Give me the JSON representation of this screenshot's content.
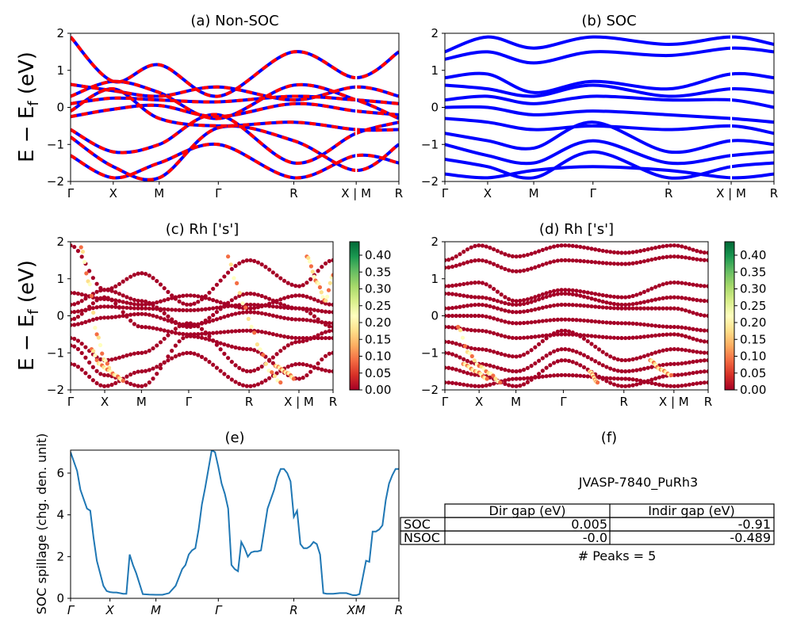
{
  "chart_data": [
    {
      "id": "a",
      "type": "line",
      "title": "(a) Non-SOC",
      "ylabel": "E − E_f (eV)",
      "ylabel_text": "E − E",
      "ylabel_sub": "f",
      "ylabel_unit": " (eV)",
      "ylim": [
        -2,
        2
      ],
      "yticks": [
        "2",
        "1",
        "0",
        "−1",
        "−2"
      ],
      "ytick_values": [
        2,
        1,
        0,
        -1,
        -2
      ],
      "xticks": [
        "Γ",
        "X",
        "M",
        "Γ",
        "R",
        "X | M",
        "R"
      ],
      "xtick_positions": [
        0,
        0.13,
        0.27,
        0.45,
        0.68,
        0.87,
        1.0
      ],
      "series": [
        {
          "color": "#0000ff",
          "style": "solid"
        },
        {
          "color": "#ff0000",
          "style": "dashed"
        }
      ],
      "bands": [
        [
          [
            0,
            0.1
          ],
          [
            0.13,
            0.25
          ],
          [
            0.27,
            0.2
          ],
          [
            0.45,
            0.15
          ],
          [
            0.68,
            0.3
          ],
          [
            0.87,
            0.2
          ],
          [
            1.0,
            0.1
          ]
        ],
        [
          [
            0,
            0.62
          ],
          [
            0.13,
            0.45
          ],
          [
            0.27,
            0.3
          ],
          [
            0.45,
            0.55
          ],
          [
            0.68,
            0.2
          ],
          [
            0.87,
            0.55
          ],
          [
            1.0,
            0.3
          ]
        ],
        [
          [
            0,
            -0.25
          ],
          [
            0.13,
            -0.05
          ],
          [
            0.27,
            0.05
          ],
          [
            0.45,
            -0.25
          ],
          [
            0.68,
            0.1
          ],
          [
            0.87,
            -0.1
          ],
          [
            1.0,
            -0.2
          ]
        ],
        [
          [
            0,
            -0.6
          ],
          [
            0.13,
            -1.2
          ],
          [
            0.27,
            -1.0
          ],
          [
            0.45,
            -0.2
          ],
          [
            0.68,
            -1.5
          ],
          [
            0.87,
            -0.7
          ],
          [
            1.0,
            -0.4
          ]
        ],
        [
          [
            0,
            -0.8
          ],
          [
            0.13,
            -1.6
          ],
          [
            0.27,
            -1.9
          ],
          [
            0.45,
            -0.55
          ],
          [
            0.68,
            -0.9
          ],
          [
            0.87,
            -1.7
          ],
          [
            1.0,
            -1.0
          ]
        ],
        [
          [
            0,
            -1.3
          ],
          [
            0.13,
            -1.9
          ],
          [
            0.27,
            -1.5
          ],
          [
            0.45,
            -1.0
          ],
          [
            0.68,
            -1.9
          ],
          [
            0.87,
            -1.3
          ],
          [
            1.0,
            -1.5
          ]
        ],
        [
          [
            0,
            1.9
          ],
          [
            0.13,
            0.7
          ],
          [
            0.27,
            1.15
          ],
          [
            0.45,
            0.3
          ],
          [
            0.68,
            1.5
          ],
          [
            0.87,
            0.8
          ],
          [
            1.0,
            1.5
          ]
        ],
        [
          [
            0,
            0.3
          ],
          [
            0.13,
            0.7
          ],
          [
            0.27,
            0.4
          ],
          [
            0.45,
            -0.3
          ],
          [
            0.68,
            0.6
          ],
          [
            0.87,
            0.2
          ],
          [
            1.0,
            -0.3
          ]
        ],
        [
          [
            0,
            -0.1
          ],
          [
            0.13,
            0.5
          ],
          [
            0.27,
            -0.3
          ],
          [
            0.45,
            -0.5
          ],
          [
            0.68,
            -0.4
          ],
          [
            0.87,
            -0.6
          ],
          [
            1.0,
            -0.6
          ]
        ]
      ]
    },
    {
      "id": "b",
      "type": "line",
      "title": "(b) SOC",
      "ylim": [
        -2,
        2
      ],
      "yticks": [
        "2",
        "1",
        "0",
        "−1",
        "−2"
      ],
      "ytick_values": [
        2,
        1,
        0,
        -1,
        -2
      ],
      "xticks": [
        "Γ",
        "X",
        "M",
        "Γ",
        "R",
        "X | M",
        "R"
      ],
      "xtick_positions": [
        0,
        0.13,
        0.27,
        0.45,
        0.68,
        0.87,
        1.0
      ],
      "series": [
        {
          "color": "#0000ff",
          "style": "solid"
        }
      ],
      "bands": [
        [
          [
            0,
            1.5
          ],
          [
            0.13,
            1.9
          ],
          [
            0.27,
            1.6
          ],
          [
            0.45,
            1.9
          ],
          [
            0.68,
            1.7
          ],
          [
            0.87,
            1.9
          ],
          [
            1.0,
            1.7
          ]
        ],
        [
          [
            0,
            1.3
          ],
          [
            0.13,
            1.5
          ],
          [
            0.27,
            1.2
          ],
          [
            0.45,
            1.5
          ],
          [
            0.68,
            1.4
          ],
          [
            0.87,
            1.6
          ],
          [
            1.0,
            1.5
          ]
        ],
        [
          [
            0,
            0.8
          ],
          [
            0.13,
            0.9
          ],
          [
            0.27,
            0.4
          ],
          [
            0.45,
            0.7
          ],
          [
            0.68,
            0.5
          ],
          [
            0.87,
            0.9
          ],
          [
            1.0,
            0.8
          ]
        ],
        [
          [
            0,
            0.6
          ],
          [
            0.13,
            0.5
          ],
          [
            0.27,
            0.3
          ],
          [
            0.45,
            0.6
          ],
          [
            0.68,
            0.3
          ],
          [
            0.87,
            0.5
          ],
          [
            1.0,
            0.4
          ]
        ],
        [
          [
            0,
            0.2
          ],
          [
            0.13,
            0.3
          ],
          [
            0.27,
            0.1
          ],
          [
            0.45,
            0.3
          ],
          [
            0.68,
            0.2
          ],
          [
            0.87,
            0.2
          ],
          [
            1.0,
            0.0
          ]
        ],
        [
          [
            0,
            0.0
          ],
          [
            0.13,
            0.0
          ],
          [
            0.27,
            -0.2
          ],
          [
            0.45,
            -0.1
          ],
          [
            0.68,
            -0.2
          ],
          [
            0.87,
            -0.3
          ],
          [
            1.0,
            -0.4
          ]
        ],
        [
          [
            0,
            -0.3
          ],
          [
            0.13,
            -0.4
          ],
          [
            0.27,
            -0.6
          ],
          [
            0.45,
            -0.5
          ],
          [
            0.68,
            -0.6
          ],
          [
            0.87,
            -0.5
          ],
          [
            1.0,
            -0.7
          ]
        ],
        [
          [
            0,
            -0.7
          ],
          [
            0.13,
            -0.9
          ],
          [
            0.27,
            -1.1
          ],
          [
            0.45,
            -0.4
          ],
          [
            0.68,
            -1.2
          ],
          [
            0.87,
            -0.9
          ],
          [
            1.0,
            -1.0
          ]
        ],
        [
          [
            0,
            -1.0
          ],
          [
            0.13,
            -1.3
          ],
          [
            0.27,
            -1.5
          ],
          [
            0.45,
            -0.9
          ],
          [
            0.68,
            -1.5
          ],
          [
            0.87,
            -1.3
          ],
          [
            1.0,
            -1.2
          ]
        ],
        [
          [
            0,
            -1.4
          ],
          [
            0.13,
            -1.6
          ],
          [
            0.27,
            -1.9
          ],
          [
            0.45,
            -1.2
          ],
          [
            0.68,
            -1.9
          ],
          [
            0.87,
            -1.6
          ],
          [
            1.0,
            -1.5
          ]
        ],
        [
          [
            0,
            -1.8
          ],
          [
            0.13,
            -1.9
          ],
          [
            0.27,
            -1.7
          ],
          [
            0.45,
            -1.6
          ],
          [
            0.68,
            -1.7
          ],
          [
            0.87,
            -1.9
          ],
          [
            1.0,
            -1.8
          ]
        ]
      ]
    },
    {
      "id": "c",
      "type": "scatter",
      "title": "(c)  Rh ['s']",
      "ylabel": "E − E_f (eV)",
      "ylabel_text": "E − E",
      "ylabel_sub": "f",
      "ylabel_unit": " (eV)",
      "ylim": [
        -2,
        2
      ],
      "yticks": [
        "2",
        "1",
        "0",
        "−1",
        "−2"
      ],
      "ytick_values": [
        2,
        1,
        0,
        -1,
        -2
      ],
      "xticks": [
        "Γ",
        "X",
        "M",
        "Γ",
        "R",
        "X | M",
        "R"
      ],
      "xtick_positions": [
        0,
        0.13,
        0.27,
        0.45,
        0.68,
        0.87,
        1.0
      ],
      "colorbar": {
        "ticks": [
          "0.40",
          "0.35",
          "0.30",
          "0.25",
          "0.20",
          "0.15",
          "0.10",
          "0.05",
          "0.00"
        ],
        "tick_values": [
          0.4,
          0.35,
          0.3,
          0.25,
          0.2,
          0.15,
          0.1,
          0.05,
          0.0
        ],
        "range": [
          0.0,
          0.44
        ],
        "colors": [
          "#a50026",
          "#d73027",
          "#f46d43",
          "#fdae61",
          "#fee08b",
          "#ffffbf",
          "#d9ef8b",
          "#a6d96a",
          "#66bd63",
          "#1a9850",
          "#006837"
        ]
      },
      "highlight_bands": [
        [
          [
            0.04,
            1.85
          ],
          [
            0.07,
            0.9
          ],
          [
            0.1,
            -0.5
          ],
          [
            0.13,
            -1.2
          ],
          [
            0.16,
            -1.55
          ]
        ],
        [
          [
            0.08,
            -0.9
          ],
          [
            0.11,
            -1.3
          ],
          [
            0.14,
            -1.45
          ],
          [
            0.17,
            -1.6
          ],
          [
            0.2,
            -1.75
          ]
        ],
        [
          [
            0.6,
            1.6
          ],
          [
            0.63,
            0.9
          ],
          [
            0.66,
            0.3
          ],
          [
            0.69,
            -0.3
          ],
          [
            0.72,
            -0.9
          ],
          [
            0.76,
            -1.5
          ],
          [
            0.8,
            -1.8
          ]
        ],
        [
          [
            0.78,
            -1.35
          ],
          [
            0.83,
            -1.55
          ],
          [
            0.85,
            -1.7
          ]
        ],
        [
          [
            0.9,
            1.6
          ],
          [
            0.94,
            0.9
          ],
          [
            0.97,
            0.4
          ],
          [
            1.0,
            1.1
          ]
        ]
      ]
    },
    {
      "id": "d",
      "type": "scatter",
      "title": "(d) Rh ['s']",
      "ylim": [
        -2,
        2
      ],
      "yticks": [
        "2",
        "1",
        "0",
        "−1",
        "−2"
      ],
      "ytick_values": [
        2,
        1,
        0,
        -1,
        -2
      ],
      "xticks": [
        "Γ",
        "X",
        "M",
        "Γ",
        "R",
        "X | M",
        "R"
      ],
      "xtick_positions": [
        0,
        0.13,
        0.27,
        0.45,
        0.68,
        0.87,
        1.0
      ],
      "colorbar": {
        "ticks": [
          "0.40",
          "0.35",
          "0.30",
          "0.25",
          "0.20",
          "0.15",
          "0.10",
          "0.05",
          "0.00"
        ],
        "tick_values": [
          0.4,
          0.35,
          0.3,
          0.25,
          0.2,
          0.15,
          0.1,
          0.05,
          0.0
        ],
        "range": [
          0.0,
          0.44
        ],
        "colors": [
          "#a50026",
          "#d73027",
          "#f46d43",
          "#fdae61",
          "#fee08b",
          "#ffffbf",
          "#d9ef8b",
          "#a6d96a",
          "#66bd63",
          "#1a9850",
          "#006837"
        ]
      },
      "highlight_bands": [
        [
          [
            0.05,
            -0.3
          ],
          [
            0.09,
            -1.0
          ],
          [
            0.13,
            -1.35
          ],
          [
            0.17,
            -1.55
          ],
          [
            0.21,
            -1.8
          ]
        ],
        [
          [
            0.07,
            -1.3
          ],
          [
            0.12,
            -1.5
          ],
          [
            0.16,
            -1.7
          ]
        ],
        [
          [
            0.55,
            -1.5
          ],
          [
            0.58,
            -1.8
          ]
        ],
        [
          [
            0.78,
            -1.2
          ],
          [
            0.82,
            -1.45
          ],
          [
            0.86,
            -1.6
          ]
        ]
      ]
    },
    {
      "id": "e",
      "type": "line",
      "title": "(e)",
      "ylabel": "SOC spillage (chg. den. unit)",
      "ylim": [
        0,
        7.1
      ],
      "yticks": [
        "0",
        "2",
        "4",
        "6"
      ],
      "ytick_values": [
        0,
        2,
        4,
        6
      ],
      "xticks": [
        "Γ",
        "X",
        "M",
        "Γ",
        "R",
        "XM",
        "R"
      ],
      "xtick_positions": [
        0,
        0.12,
        0.26,
        0.45,
        0.68,
        0.87,
        1.0
      ],
      "color": "#1f77b4",
      "x": [
        0,
        0.02,
        0.03,
        0.05,
        0.06,
        0.07,
        0.08,
        0.09,
        0.1,
        0.11,
        0.12,
        0.13,
        0.14,
        0.15,
        0.16,
        0.17,
        0.18,
        0.19,
        0.2,
        0.22,
        0.24,
        0.26,
        0.28,
        0.3,
        0.32,
        0.34,
        0.35,
        0.36,
        0.37,
        0.38,
        0.39,
        0.4,
        0.41,
        0.42,
        0.43,
        0.44,
        0.45,
        0.46,
        0.47,
        0.48,
        0.49,
        0.5,
        0.51,
        0.52,
        0.53,
        0.54,
        0.55,
        0.56,
        0.57,
        0.58,
        0.6,
        0.62,
        0.63,
        0.64,
        0.65,
        0.66,
        0.67,
        0.68,
        0.69,
        0.7,
        0.71,
        0.72,
        0.73,
        0.74,
        0.75,
        0.76,
        0.77,
        0.78,
        0.79,
        0.8,
        0.82,
        0.84,
        0.86,
        0.87,
        0.88,
        0.89,
        0.9,
        0.91,
        0.92,
        0.93,
        0.94,
        0.95,
        0.96,
        0.97,
        0.98,
        0.99,
        1.0
      ],
      "y": [
        7.0,
        6.1,
        5.2,
        4.3,
        4.2,
        2.9,
        1.8,
        1.2,
        0.6,
        0.35,
        0.3,
        0.28,
        0.28,
        0.25,
        0.22,
        0.22,
        2.1,
        1.6,
        1.2,
        0.2,
        0.18,
        0.17,
        0.17,
        0.25,
        0.6,
        1.4,
        1.6,
        2.1,
        2.3,
        2.4,
        3.3,
        4.5,
        5.3,
        6.2,
        7.1,
        7.0,
        6.3,
        5.5,
        5.0,
        4.3,
        1.6,
        1.4,
        1.3,
        2.7,
        2.4,
        2.0,
        2.2,
        2.25,
        2.25,
        2.3,
        4.3,
        5.2,
        5.8,
        6.2,
        6.2,
        6.0,
        5.6,
        3.9,
        4.2,
        2.6,
        2.4,
        2.4,
        2.5,
        2.7,
        2.6,
        2.1,
        0.25,
        0.22,
        0.22,
        0.22,
        0.25,
        0.25,
        0.15,
        0.15,
        0.2,
        1.0,
        1.8,
        1.75,
        3.2,
        3.2,
        3.3,
        3.5,
        4.7,
        5.5,
        5.9,
        6.2,
        6.2
      ]
    }
  ],
  "table": {
    "title": "(f)",
    "material": "JVASP-7840_PuRh3",
    "headers": [
      "",
      "Dir gap (eV)",
      "Indir gap (eV)"
    ],
    "rows": [
      {
        "label": "SOC",
        "dir": "0.005",
        "indir": "-0.91"
      },
      {
        "label": "NSOC",
        "dir": "-0.0",
        "indir": "-0.489"
      }
    ],
    "peaks": "# Peaks = 5"
  }
}
